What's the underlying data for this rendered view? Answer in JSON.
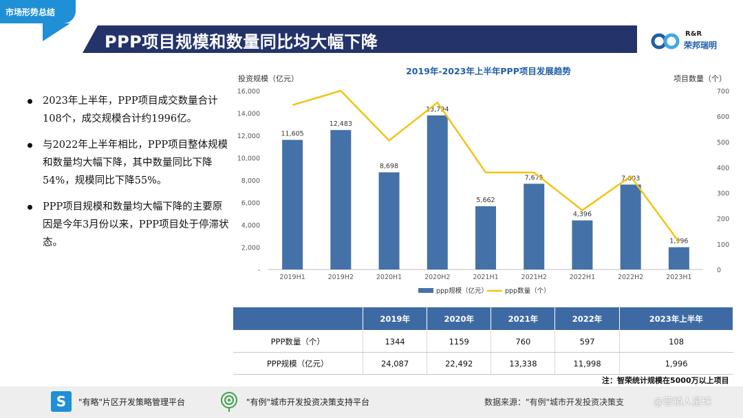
{
  "header": {
    "section_tab": "市场形势总结",
    "title": "PPP项目规模和数量同比均大幅下降",
    "logo_en": "R&R",
    "logo_cn": "荣邦瑞明"
  },
  "bullets": [
    "2023年上半年，PPP项目成交数量合计108个，成交规模合计约1996亿。",
    "与2022年上半年相比，PPP项目整体规模和数量均大幅下降，其中数量同比下降54%，规模同比下降55%。",
    "PPP项目规模和数量均大幅下降的主要原因是今年3月份以来，PPP项目处于停滞状态。"
  ],
  "chart_data": {
    "type": "bar+line",
    "title": "2019年-2023年上半年PPP项目发展趋势",
    "ylabel_left": "投资规模（亿元）",
    "ylabel_right": "项目数量（个）",
    "categories": [
      "2019H1",
      "2019H2",
      "2020H1",
      "2020H2",
      "2021H1",
      "2021H2",
      "2022H1",
      "2022H2",
      "2023H1"
    ],
    "left_ticks": [
      "-",
      "2,000",
      "4,000",
      "6,000",
      "8,000",
      "10,000",
      "12,000",
      "14,000",
      "16,000"
    ],
    "right_ticks": [
      "0",
      "100",
      "200",
      "300",
      "400",
      "500",
      "600",
      "700"
    ],
    "ylim_left": [
      0,
      16000
    ],
    "ylim_right": [
      0,
      700
    ],
    "series": [
      {
        "name": "ppp规模（亿元）",
        "type": "bar",
        "axis": "left",
        "values": [
          11605,
          12483,
          8698,
          13794,
          5662,
          7675,
          4396,
          7603,
          1996
        ],
        "labels": [
          "11,605",
          "12,483",
          "8,698",
          "13,794",
          "5,662",
          "7,675",
          "4,396",
          "7,603",
          "1,996"
        ]
      },
      {
        "name": "ppp数量（个）",
        "type": "line",
        "axis": "right",
        "values": [
          644,
          700,
          505,
          654,
          380,
          380,
          232,
          365,
          108
        ]
      }
    ],
    "colors": {
      "bar": "#4472a8",
      "line": "#f5c211"
    },
    "legend": "bottom"
  },
  "table": {
    "headers": [
      "",
      "2019年",
      "2020年",
      "2021年",
      "2022年",
      "2023年上半年"
    ],
    "rows": [
      {
        "label": "PPP数量（个）",
        "cells": [
          "1344",
          "1159",
          "760",
          "597",
          "108"
        ]
      },
      {
        "label": "PPP规模（亿元）",
        "cells": [
          "24,087",
          "22,492",
          "13,338",
          "11,998",
          "1,996"
        ]
      }
    ]
  },
  "note": "注：智荣统计规模在5000万以上项目",
  "footer": {
    "item1": "\"有略\"片区开发策略管理平台",
    "item2": "\"有例\"城市开发投资决策支持平台",
    "source": "数据来源：\"有例\"城市开发投资决策支",
    "watermark": "@营销人星球"
  }
}
